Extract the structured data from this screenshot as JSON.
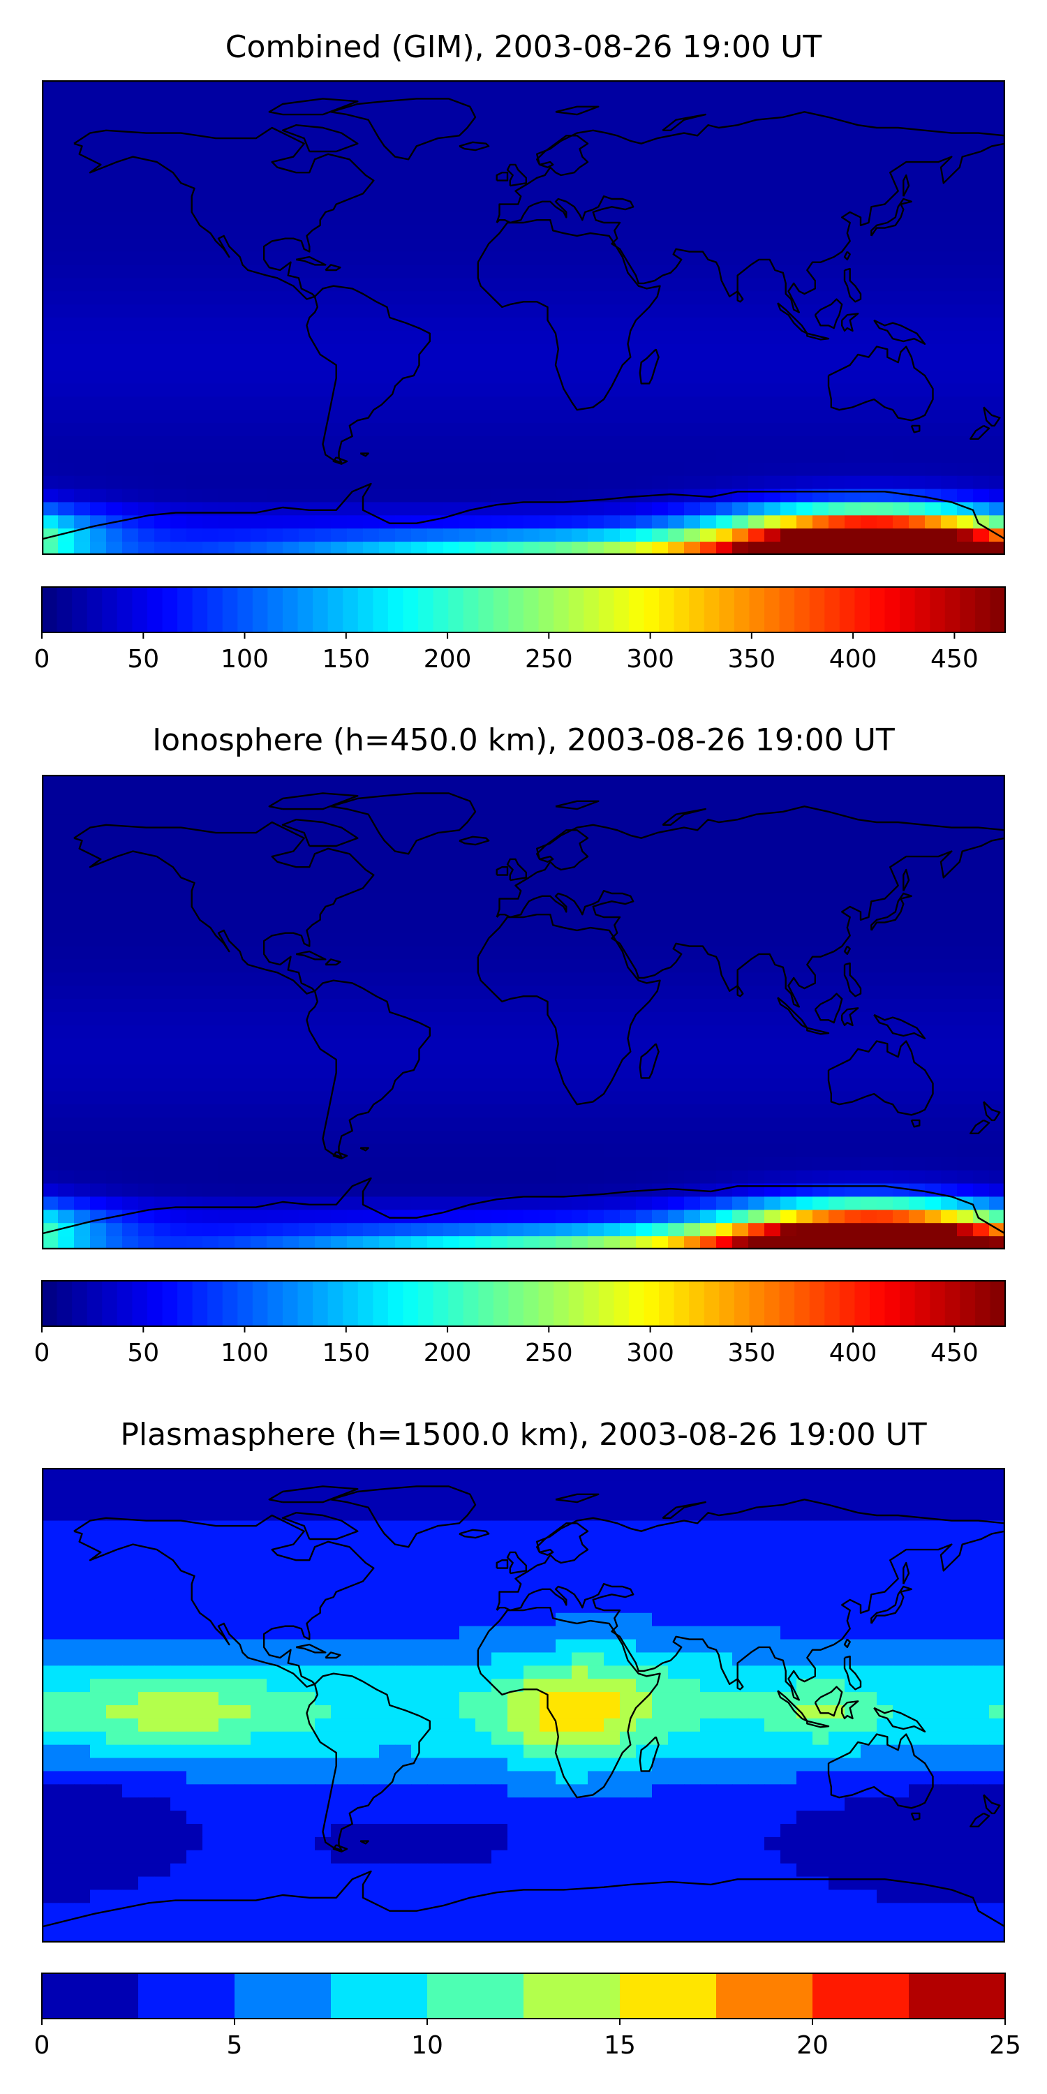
{
  "chart_data": [
    {
      "type": "heatmap",
      "title": "Combined (GIM), 2003-08-26 19:00 UT",
      "colormap": "jet",
      "colorbar": {
        "orientation": "horizontal",
        "vmin": 0,
        "vmax": 475,
        "ticks": [
          0,
          50,
          100,
          150,
          200,
          250,
          300,
          350,
          400,
          450
        ],
        "levels": "continuous"
      },
      "map": {
        "projection": "plate-carree",
        "coastlines": true
      },
      "features": [
        {
          "label": "background",
          "value": 25
        },
        {
          "label": "equatorial band",
          "value": 55
        },
        {
          "label": "southern high-latitude maximum",
          "lon": 130,
          "lat": -85,
          "value": 470
        }
      ]
    },
    {
      "type": "heatmap",
      "title": "Ionosphere  (h=450.0 km), 2003-08-26 19:00 UT",
      "colormap": "jet",
      "colorbar": {
        "orientation": "horizontal",
        "vmin": 0,
        "vmax": 475,
        "ticks": [
          0,
          50,
          100,
          150,
          200,
          250,
          300,
          350,
          400,
          450
        ],
        "levels": "continuous"
      },
      "map": {
        "projection": "plate-carree",
        "coastlines": true
      },
      "features": [
        {
          "label": "background",
          "value": 20
        },
        {
          "label": "equatorial band",
          "value": 45
        },
        {
          "label": "southern high-latitude maximum",
          "lon": 130,
          "lat": -85,
          "value": 465
        }
      ]
    },
    {
      "type": "heatmap",
      "title": "Plasmasphere (h=1500.0 km), 2003-08-26 19:00 UT",
      "colormap": "jet",
      "colorbar": {
        "orientation": "horizontal",
        "vmin": 0,
        "vmax": 25,
        "ticks": [
          0,
          5,
          10,
          15,
          20,
          25
        ],
        "levels": [
          0,
          2.5,
          5,
          7.5,
          10,
          12.5,
          15,
          17.5,
          20,
          22.5,
          25
        ]
      },
      "map": {
        "projection": "plate-carree",
        "coastlines": true
      },
      "features": [
        {
          "label": "polar regions",
          "value": 2
        },
        {
          "label": "mid latitudes",
          "value": 6
        },
        {
          "label": "equatorial band",
          "value": 9
        },
        {
          "label": "Pacific maximum",
          "lon": -130,
          "lat": -3,
          "value": 14
        },
        {
          "label": "Africa maximum",
          "lon": 19,
          "lat": -5,
          "value": 15.5
        },
        {
          "label": "Indonesia maximum",
          "lon": 112,
          "lat": -3,
          "value": 12.8
        }
      ]
    }
  ]
}
